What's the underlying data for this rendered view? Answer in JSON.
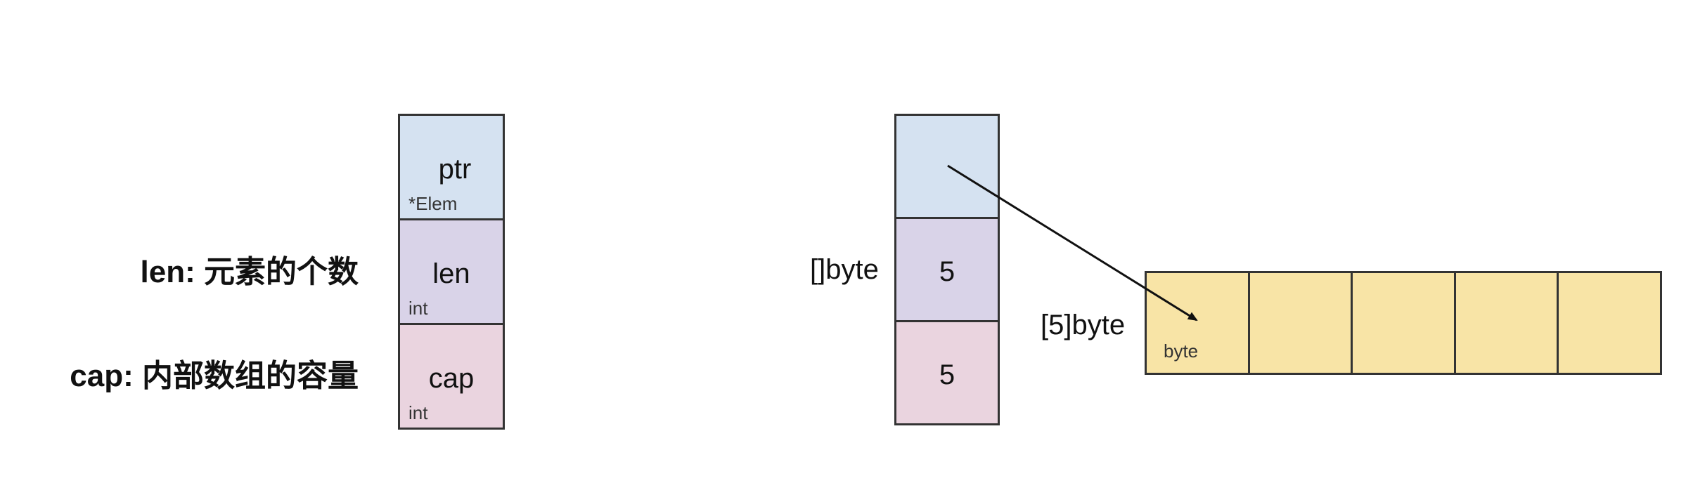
{
  "annotations": {
    "len": "len: 元素的个数",
    "cap": "cap: 内部数组的容量"
  },
  "header_left": {
    "ptr": {
      "label": "ptr",
      "type": "*Elem"
    },
    "len": {
      "label": "len",
      "type": "int"
    },
    "cap": {
      "label": "cap",
      "type": "int"
    }
  },
  "slice_example": {
    "type_label": "[]byte",
    "len_value": "5",
    "cap_value": "5"
  },
  "array_example": {
    "type_label": "[5]byte",
    "element_type": "byte",
    "slots": [
      "",
      "",
      "",
      "",
      ""
    ]
  },
  "colors": {
    "ptr": "#d5e2f1",
    "len": "#d9d3e8",
    "cap": "#ead4df",
    "array": "#f8e4a6",
    "border": "#333333"
  }
}
